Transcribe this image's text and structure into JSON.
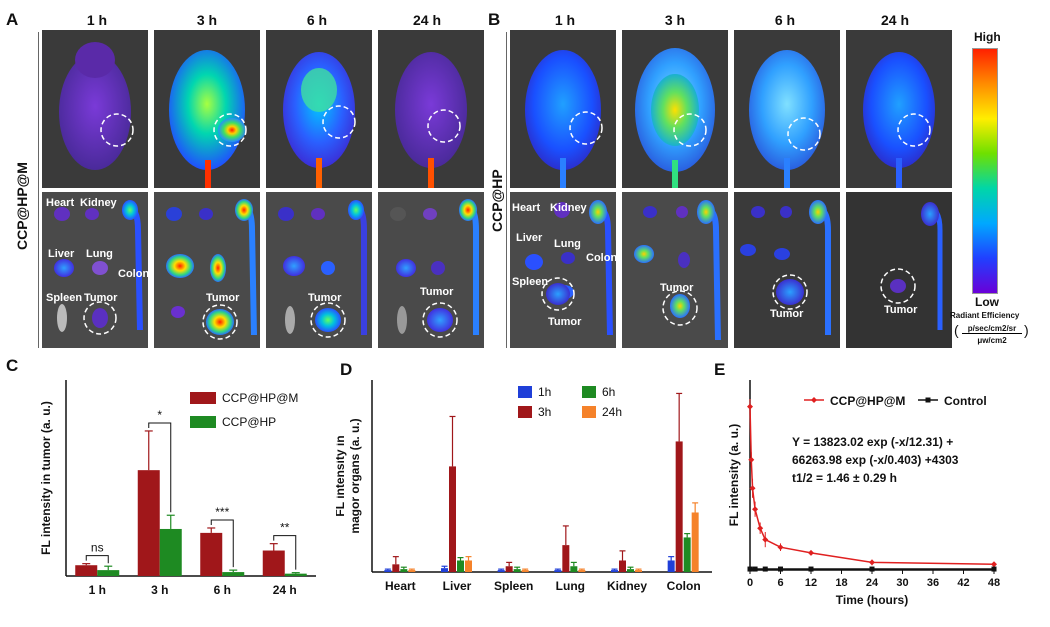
{
  "panel_letters": {
    "a": "A",
    "b": "B",
    "c": "C",
    "d": "D",
    "e": "E"
  },
  "panel_a": {
    "row_label": "CCP@HP@M",
    "timepoints": [
      "1 h",
      "3 h",
      "6 h",
      "24 h"
    ],
    "organ_labels": {
      "heart": "Heart",
      "kidney": "Kidney",
      "liver": "Liver",
      "lung": "Lung",
      "colon": "Colon",
      "spleen": "Spleen",
      "tumor": "Tumor"
    }
  },
  "panel_b": {
    "row_label": "CCP@HP",
    "timepoints": [
      "1 h",
      "3 h",
      "6 h",
      "24 h"
    ],
    "organ_labels": {
      "heart": "Heart",
      "kidney": "Kidney",
      "liver": "Liver",
      "lung": "Lung",
      "colon": "Colon",
      "spleen": "Spleen",
      "tumor": "Tumor"
    }
  },
  "colorbar": {
    "high_label": "High",
    "low_label": "Low",
    "title": "Radiant Efficiency",
    "unit_numerator": "p/sec/cm2/sr",
    "unit_denominator": "μw/cm2",
    "colors": [
      "#ff2000",
      "#ff8c00",
      "#ffee00",
      "#6ee000",
      "#00d6a8",
      "#00a8ff",
      "#2040ff",
      "#6a00d8"
    ]
  },
  "chart_data": [
    {
      "type": "bar",
      "categories": [
        "1 h",
        "3 h",
        "6 h",
        "24 h"
      ],
      "ylabel": "FL intensity in tumor (a. u.)",
      "xlabel": "",
      "ylim": [
        0,
        100
      ],
      "legend_position": "top-right",
      "series": [
        {
          "name": "CCP@HP@M",
          "color": "#a0171a",
          "values": [
            5.5,
            54,
            22,
            13
          ],
          "errors": [
            0.8,
            20,
            2.5,
            3.5
          ]
        },
        {
          "name": "CCP@HP",
          "color": "#1e8a22",
          "values": [
            3,
            24,
            2,
            1.2
          ],
          "errors": [
            2,
            7,
            1,
            0.5
          ]
        }
      ],
      "significance": [
        {
          "category": "1 h",
          "label": "ns"
        },
        {
          "category": "3 h",
          "label": "*"
        },
        {
          "category": "6 h",
          "label": "***"
        },
        {
          "category": "24 h",
          "label": "**"
        }
      ]
    },
    {
      "type": "bar",
      "categories": [
        "Heart",
        "Liver",
        "Spleen",
        "Lung",
        "Kidney",
        "Colon"
      ],
      "ylabel": "FL intensity in magor organs (a. u.)",
      "xlabel": "",
      "ylim": [
        0,
        100
      ],
      "legend_position": "top-center",
      "series": [
        {
          "name": "1h",
          "color": "#1f3fd8",
          "values": [
            1,
            2,
            1,
            1,
            1,
            6
          ],
          "errors": [
            0.5,
            1,
            0.5,
            0.5,
            0.5,
            2
          ]
        },
        {
          "name": "3h",
          "color": "#a0171a",
          "values": [
            4,
            55,
            3,
            14,
            6,
            68
          ],
          "errors": [
            4,
            26,
            2,
            10,
            5,
            25
          ]
        },
        {
          "name": "6h",
          "color": "#1e8a22",
          "values": [
            1.5,
            6,
            1.5,
            3,
            1.5,
            18
          ],
          "errors": [
            1,
            1.5,
            1,
            2,
            1,
            2
          ]
        },
        {
          "name": "24h",
          "color": "#f5822a",
          "values": [
            1,
            6,
            1,
            1,
            1,
            31
          ],
          "errors": [
            0.5,
            2,
            0.5,
            0.5,
            0.5,
            5
          ]
        }
      ]
    },
    {
      "type": "line",
      "xlabel": "Time (hours)",
      "ylabel": "FL intensity (a. u.)",
      "xlim": [
        0,
        48
      ],
      "ylim": [
        0,
        100
      ],
      "xticks": [
        0,
        6,
        12,
        18,
        24,
        30,
        36,
        42,
        48
      ],
      "legend_position": "top",
      "series": [
        {
          "name": "CCP@HP@M",
          "color": "#e02020",
          "x": [
            0,
            0.25,
            0.5,
            1,
            2,
            3,
            6,
            12,
            24,
            48
          ],
          "y": [
            86,
            58,
            43,
            32,
            22,
            16,
            12,
            9,
            4,
            3
          ],
          "errors": [
            4,
            4,
            5,
            4,
            3,
            4,
            2,
            1,
            1.5,
            1
          ]
        },
        {
          "name": "Control",
          "color": "#111111",
          "x": [
            0,
            1,
            3,
            6,
            12,
            24,
            48
          ],
          "y": [
            0.5,
            0.5,
            0.5,
            0.5,
            0.5,
            0.5,
            0.5
          ]
        }
      ],
      "annotations": [
        "Y = 13823.02 exp (-x/12.31) +",
        "66263.98 exp (-x/0.403) +4303",
        "t1/2 = 1.46 ± 0.29 h"
      ]
    }
  ]
}
